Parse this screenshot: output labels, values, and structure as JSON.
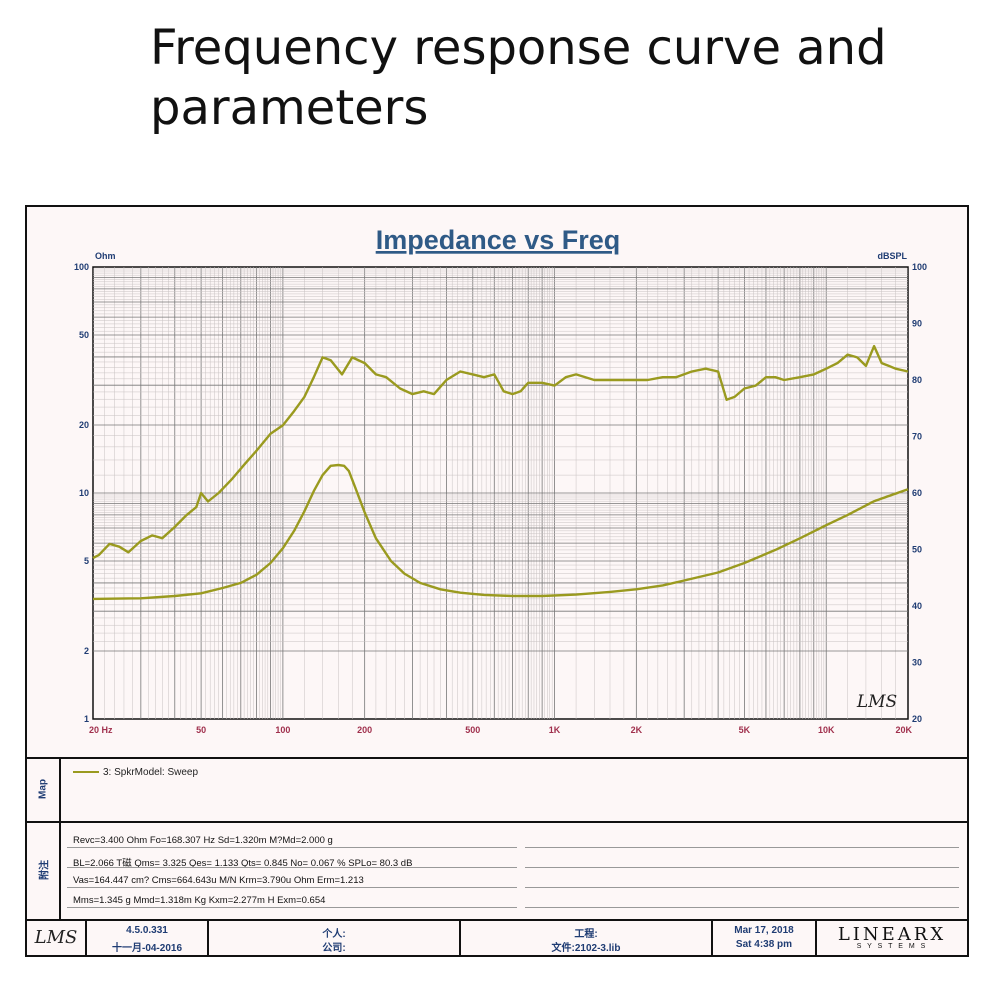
{
  "page": {
    "title": "Frequency response curve and parameters"
  },
  "chart_data": {
    "type": "line",
    "title": "Impedance vs Freq",
    "left_axis_unit": "Ohm",
    "right_axis_unit": "dBSPL",
    "x_scale": "log",
    "xlim": [
      20,
      20000
    ],
    "y_left_scale": "log",
    "y_left_lim": [
      1,
      100
    ],
    "y_right_lim": [
      20,
      100
    ],
    "x_ticks": [
      {
        "value": 20,
        "label": "20 Hz"
      },
      {
        "value": 50,
        "label": "50"
      },
      {
        "value": 100,
        "label": "100"
      },
      {
        "value": 200,
        "label": "200"
      },
      {
        "value": 500,
        "label": "500"
      },
      {
        "value": 1000,
        "label": "1K"
      },
      {
        "value": 2000,
        "label": "2K"
      },
      {
        "value": 5000,
        "label": "5K"
      },
      {
        "value": 10000,
        "label": "10K"
      },
      {
        "value": 20000,
        "label": "20K"
      }
    ],
    "y_left_ticks": [
      {
        "value": 1,
        "label": "1"
      },
      {
        "value": 2,
        "label": "2"
      },
      {
        "value": 5,
        "label": "5"
      },
      {
        "value": 10,
        "label": "10"
      },
      {
        "value": 20,
        "label": "20"
      },
      {
        "value": 50,
        "label": "50"
      },
      {
        "value": 100,
        "label": "100"
      }
    ],
    "y_right_ticks": [
      {
        "value": 20,
        "label": "20"
      },
      {
        "value": 30,
        "label": "30"
      },
      {
        "value": 40,
        "label": "40"
      },
      {
        "value": 50,
        "label": "50"
      },
      {
        "value": 60,
        "label": "60"
      },
      {
        "value": 70,
        "label": "70"
      },
      {
        "value": 80,
        "label": "80"
      },
      {
        "value": 90,
        "label": "90"
      },
      {
        "value": 100,
        "label": "100"
      }
    ],
    "grid": true,
    "series": [
      {
        "name": "",
        "axis": "right",
        "color": "#9a9a1f",
        "x": [
          20,
          21,
          23,
          25,
          27,
          30,
          33,
          36,
          40,
          44,
          48,
          50,
          53,
          58,
          65,
          72,
          80,
          90,
          100,
          110,
          120,
          130,
          140,
          150,
          165,
          180,
          200,
          220,
          240,
          270,
          300,
          330,
          360,
          400,
          450,
          500,
          550,
          600,
          650,
          700,
          750,
          800,
          900,
          1000,
          1100,
          1200,
          1400,
          1600,
          1800,
          2000,
          2200,
          2500,
          2800,
          3200,
          3600,
          4000,
          4300,
          4600,
          5000,
          5500,
          6000,
          6500,
          7000,
          8000,
          9000,
          10000,
          11000,
          12000,
          13000,
          14000,
          15000,
          16000,
          17000,
          18000,
          20000
        ],
        "y": [
          48.5,
          49,
          51,
          50.5,
          49.5,
          51.5,
          52.5,
          52,
          54,
          56,
          57.5,
          60,
          58.5,
          60,
          62.5,
          65,
          67.5,
          70.5,
          72,
          74.5,
          77,
          80.5,
          84,
          83.5,
          81,
          84,
          83,
          81,
          80.5,
          78.5,
          77.5,
          78,
          77.5,
          80,
          81.5,
          81,
          80.5,
          81,
          78,
          77.5,
          78,
          79.5,
          79.5,
          79,
          80.5,
          81,
          80,
          80,
          80,
          80,
          80,
          80.5,
          80.5,
          81.5,
          82,
          81.5,
          76.5,
          77,
          78.5,
          79,
          80.5,
          80.5,
          80,
          80.5,
          81,
          82,
          83,
          84.5,
          84,
          82.5,
          86,
          83,
          82.5,
          82,
          81.5
        ]
      },
      {
        "name": "",
        "axis": "left",
        "color": "#9a9a1f",
        "x": [
          20,
          30,
          40,
          50,
          60,
          70,
          80,
          90,
          100,
          110,
          120,
          130,
          140,
          150,
          160,
          168,
          175,
          185,
          200,
          220,
          250,
          280,
          320,
          380,
          450,
          550,
          700,
          900,
          1200,
          1600,
          2000,
          2500,
          3000,
          4000,
          5000,
          6500,
          8000,
          10000,
          12000,
          15000,
          20000
        ],
        "y": [
          3.4,
          3.42,
          3.5,
          3.6,
          3.8,
          4.0,
          4.35,
          4.9,
          5.7,
          6.8,
          8.3,
          10.2,
          12.0,
          13.2,
          13.3,
          13.2,
          12.5,
          10.5,
          8.2,
          6.3,
          5.0,
          4.4,
          4.0,
          3.75,
          3.62,
          3.54,
          3.5,
          3.5,
          3.55,
          3.65,
          3.75,
          3.9,
          4.1,
          4.45,
          4.9,
          5.6,
          6.3,
          7.2,
          8.0,
          9.2,
          10.4
        ]
      }
    ]
  },
  "map_panel": {
    "label": "Map",
    "entry": "3: SpkrModel: Sweep"
  },
  "params_panel": {
    "label": "附注",
    "rows": [
      "Revc=3.400 Ohm  Fo=168.307 Hz  Sd=1.320m M?Md=2.000 g",
      "BL=2.066 T磁  Qms= 3.325  Qes= 1.133  Qts= 0.845  No= 0.067 %  SPLo= 80.3 dB",
      "Vas=164.447 cm? Cms=664.643u M/N  Krm=3.790u Ohm  Erm=1.213",
      "Mms=1.345 g  Mmd=1.318m Kg  Kxm=2.277m H  Exm=0.654"
    ]
  },
  "footer": {
    "logo": "LMS",
    "version": "4.5.0.331",
    "build_date": "十一月-04-2016",
    "personal_label": "个人:",
    "company_label": "公司:",
    "project_label": "工程:",
    "file_label": "文件:2102-3.lib",
    "date": "Mar 17, 2018",
    "time": "Sat  4:38 pm",
    "brand": "LINEARX",
    "brand_sub": "S Y S T E M S"
  },
  "watermark": "LMS"
}
